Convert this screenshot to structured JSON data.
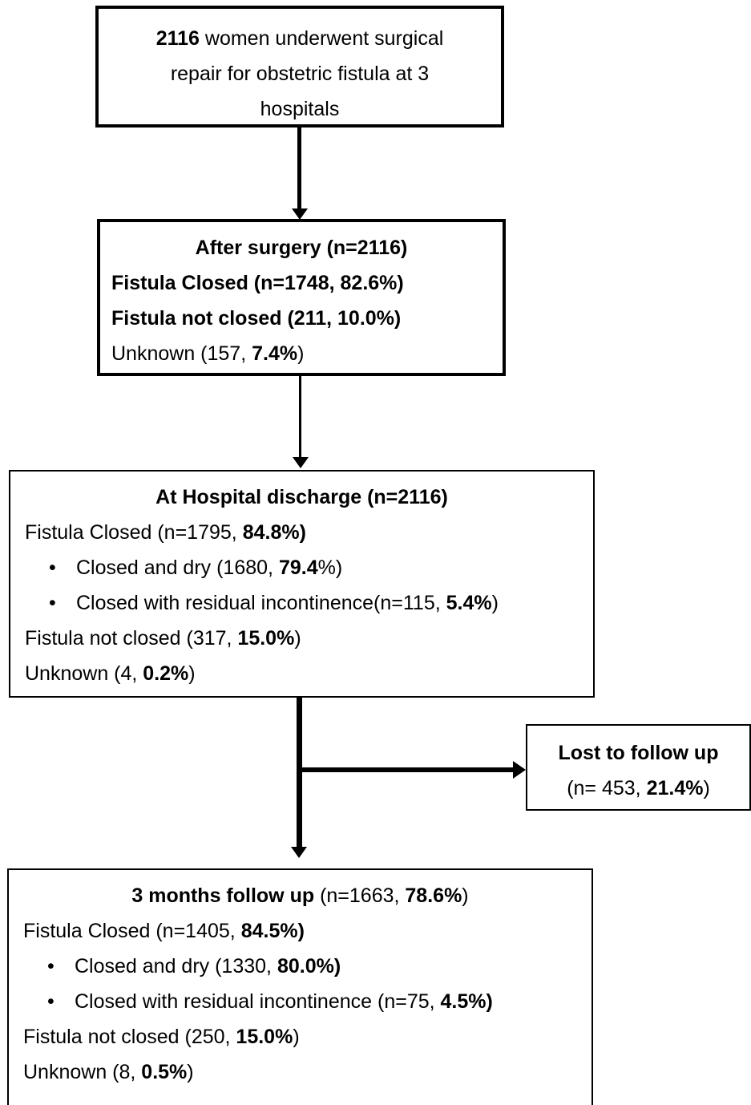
{
  "box1": {
    "count": "2116",
    "text_rest": " women underwent surgical",
    "line2": "repair for obstetric fistula at 3",
    "line3": "hospitals"
  },
  "box2": {
    "title": "After surgery  (n=2116)",
    "closed_prefix": "Fistula Closed (n=1748, ",
    "closed_pct": "82.6%)",
    "notclosed_prefix": "Fistula not closed (211, ",
    "notclosed_pct": "10.0%)",
    "unknown_prefix": "Unknown (157, ",
    "unknown_pct": "7.4%",
    "unknown_suffix": ")"
  },
  "box3": {
    "title": "At Hospital discharge (n=2116)",
    "closed_prefix": "Fistula Closed (n=1795, ",
    "closed_pct": "84.8%)",
    "bullet1_prefix": "Closed and dry (1680, ",
    "bullet1_pct": "79.4",
    "bullet1_suffix": "%)",
    "bullet2_prefix": "Closed with residual incontinence(n=115, ",
    "bullet2_pct": "5.4%",
    "bullet2_suffix": ")",
    "notclosed_prefix": "Fistula not closed (317, ",
    "notclosed_pct": "15.0%",
    "notclosed_suffix": ")",
    "unknown_prefix": "Unknown (4, ",
    "unknown_pct": "0.2%",
    "unknown_suffix": ")"
  },
  "lost": {
    "title": "Lost to follow up",
    "detail_prefix": "(n= 453, ",
    "detail_pct": "21.4%",
    "detail_suffix": ")"
  },
  "box4": {
    "title": "3 months follow up",
    "title_detail_prefix": " (n=1663, ",
    "title_detail_pct": "78.6%",
    "title_detail_suffix": ")",
    "closed_prefix": "Fistula Closed (n=1405, ",
    "closed_pct": "84.5%)",
    "bullet1_prefix": "Closed and dry (1330, ",
    "bullet1_pct": "80.0%)",
    "bullet2_prefix": "Closed with residual incontinence (n=75, ",
    "bullet2_pct": "4.5%)",
    "notclosed_prefix": "Fistula not closed (250, ",
    "notclosed_pct": "15.0%",
    "notclosed_suffix": ")",
    "unknown_prefix": "Unknown (8, ",
    "unknown_pct": "0.5%",
    "unknown_suffix": ")"
  },
  "bullet_glyph": "•"
}
